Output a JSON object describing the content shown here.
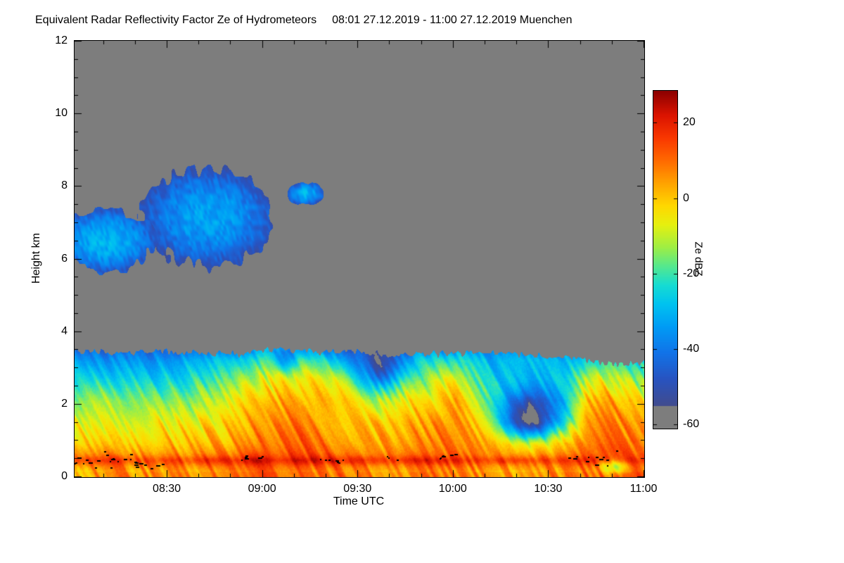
{
  "chart_data": {
    "type": "heatmap",
    "title": "Equivalent Radar Reflectivity Factor Ze of Hydrometeors",
    "period": "08:01 27.12.2019 - 11:00 27.12.2019 Muenchen",
    "station": "Muenchen",
    "xlabel": "Time UTC",
    "ylabel": "Height km",
    "colorbar_label": "Ze dBZ",
    "x_axis": {
      "start_label": "08:01",
      "end_label": "11:00",
      "start_min": 481,
      "end_min": 660,
      "major_tick_min": 30,
      "minor_tick_min": 10,
      "ticks": [
        {
          "label": "08:30",
          "min": 510
        },
        {
          "label": "09:00",
          "min": 540
        },
        {
          "label": "09:30",
          "min": 570
        },
        {
          "label": "10:00",
          "min": 600
        },
        {
          "label": "10:30",
          "min": 630
        },
        {
          "label": "11:00",
          "min": 660
        }
      ]
    },
    "y_axis": {
      "min": 0,
      "max": 12,
      "major_ticks": [
        0,
        2,
        4,
        6,
        8,
        10,
        12
      ],
      "minor_step": 0.5
    },
    "colorbar": {
      "vmin": -61,
      "vmax": 28.5,
      "ticks": [
        20,
        0,
        -20,
        -40,
        -60
      ],
      "no_data_color": "#7d7d7d"
    },
    "scene": {
      "colormap": [
        [
          -61,
          "#7d7d7d"
        ],
        [
          -55.2,
          "#7d7d7d"
        ],
        [
          -55,
          "#414b8e"
        ],
        [
          -48,
          "#2853c0"
        ],
        [
          -41,
          "#1173e8"
        ],
        [
          -34,
          "#009cf5"
        ],
        [
          -28,
          "#00c3f0"
        ],
        [
          -23,
          "#16dcd2"
        ],
        [
          -18,
          "#55e88e"
        ],
        [
          -13,
          "#9eee45"
        ],
        [
          -7,
          "#e6f00f"
        ],
        [
          -2,
          "#ffd800"
        ],
        [
          4,
          "#ffa300"
        ],
        [
          10,
          "#ff6a00"
        ],
        [
          16,
          "#f93800"
        ],
        [
          22,
          "#dc1400"
        ],
        [
          28.5,
          "#8c0000"
        ]
      ],
      "layer_top_points": [
        [
          0,
          3.45
        ],
        [
          0.08,
          3.42
        ],
        [
          0.16,
          3.46
        ],
        [
          0.24,
          3.4
        ],
        [
          0.3,
          3.38
        ],
        [
          0.34,
          3.5
        ],
        [
          0.42,
          3.44
        ],
        [
          0.5,
          3.42
        ],
        [
          0.56,
          3.36
        ],
        [
          0.64,
          3.38
        ],
        [
          0.72,
          3.42
        ],
        [
          0.8,
          3.36
        ],
        [
          0.86,
          3.3
        ],
        [
          0.9,
          3.2
        ],
        [
          0.94,
          3.12
        ],
        [
          1,
          3.15
        ]
      ],
      "profile_heights": [
        0.1,
        0.45,
        0.9,
        1.5,
        2.1,
        2.7,
        3.2,
        3.45
      ],
      "profiles": [
        {
          "t": 0.0,
          "v": [
            2,
            9,
            0,
            -6,
            -14,
            -26,
            -34,
            -40
          ]
        },
        {
          "t": 0.06,
          "v": [
            3,
            10,
            2,
            -5,
            -12,
            -25,
            -35,
            -42
          ]
        },
        {
          "t": 0.13,
          "v": [
            4,
            9,
            2,
            -4,
            -16,
            -28,
            -37,
            -43
          ]
        },
        {
          "t": 0.2,
          "v": [
            3,
            8,
            1,
            -6,
            -13,
            -23,
            -31,
            -39
          ]
        },
        {
          "t": 0.27,
          "v": [
            5,
            11,
            4,
            0,
            -8,
            -18,
            -28,
            -37
          ]
        },
        {
          "t": 0.33,
          "v": [
            9,
            15,
            10,
            6,
            2,
            -7,
            -20,
            -31
          ]
        },
        {
          "t": 0.4,
          "v": [
            10,
            16,
            11,
            7,
            3,
            -5,
            -17,
            -29
          ]
        },
        {
          "t": 0.47,
          "v": [
            7,
            12,
            7,
            3,
            -2,
            -13,
            -31,
            -41
          ]
        },
        {
          "t": 0.53,
          "v": [
            4,
            10,
            4,
            0,
            -11,
            -36,
            -48,
            -50
          ]
        },
        {
          "t": 0.6,
          "v": [
            6,
            11,
            6,
            3,
            -4,
            -15,
            -27,
            -37
          ]
        },
        {
          "t": 0.67,
          "v": [
            8,
            13,
            9,
            6,
            1,
            -9,
            -23,
            -33
          ]
        },
        {
          "t": 0.73,
          "v": [
            5,
            9,
            3,
            -7,
            -19,
            -26,
            -30,
            -35
          ]
        },
        {
          "t": 0.8,
          "v": [
            3,
            8,
            -2,
            -34,
            -42,
            -30,
            -29,
            -34
          ]
        },
        {
          "t": 0.86,
          "v": [
            4,
            9,
            1,
            -18,
            -28,
            -26,
            -29,
            -35
          ]
        },
        {
          "t": 0.9,
          "v": [
            9,
            15,
            11,
            7,
            1,
            -10,
            -25,
            -32
          ]
        },
        {
          "t": 0.94,
          "v": [
            11,
            16,
            12,
            8,
            4,
            -7,
            -21,
            -31
          ]
        },
        {
          "t": 1.0,
          "v": [
            8,
            13,
            8,
            3,
            -3,
            -15,
            -27,
            -35
          ]
        }
      ],
      "bumps": [
        {
          "t": 0.795,
          "h": 1.55,
          "st": 0.055,
          "sh": 0.55,
          "amp": -26
        },
        {
          "t": 0.37,
          "h": 3.2,
          "st": 0.022,
          "sh": 0.33,
          "amp": -16
        },
        {
          "t": 0.545,
          "h": 3.0,
          "st": 0.03,
          "sh": 0.45,
          "amp": -10
        },
        {
          "t": 0.95,
          "h": 0.3,
          "st": 0.025,
          "sh": 0.22,
          "amp": -26
        }
      ],
      "bright_band": {
        "h": 0.45,
        "sh": 0.13,
        "amp": 7
      },
      "blobs": [
        {
          "t": 0.055,
          "h": 6.5,
          "rt": 0.085,
          "rh": 0.85,
          "core": -30,
          "edge": -47
        },
        {
          "t": 0.235,
          "h": 7.15,
          "rt": 0.118,
          "rh": 1.35,
          "core": -33,
          "edge": -50
        },
        {
          "t": 0.315,
          "h": 7.0,
          "rt": 0.028,
          "rh": 0.5,
          "core": -40,
          "edge": -50
        },
        {
          "t": 0.405,
          "h": 7.8,
          "rt": 0.032,
          "rh": 0.3,
          "core": -31,
          "edge": -46
        }
      ],
      "specks": [
        {
          "t": 0.045,
          "h": 0.45,
          "n": 16,
          "st": 0.04,
          "sh": 0.18
        },
        {
          "t": 0.105,
          "h": 0.35,
          "n": 7,
          "st": 0.02,
          "sh": 0.1
        },
        {
          "t": 0.145,
          "h": 0.3,
          "n": 5,
          "st": 0.015,
          "sh": 0.08
        },
        {
          "t": 0.31,
          "h": 0.55,
          "n": 6,
          "st": 0.02,
          "sh": 0.08
        },
        {
          "t": 0.46,
          "h": 0.45,
          "n": 7,
          "st": 0.025,
          "sh": 0.1
        },
        {
          "t": 0.56,
          "h": 0.5,
          "n": 3,
          "st": 0.012,
          "sh": 0.06
        },
        {
          "t": 0.64,
          "h": 0.55,
          "n": 6,
          "st": 0.02,
          "sh": 0.12
        },
        {
          "t": 0.9,
          "h": 0.5,
          "n": 12,
          "st": 0.035,
          "sh": 0.15
        }
      ]
    }
  }
}
